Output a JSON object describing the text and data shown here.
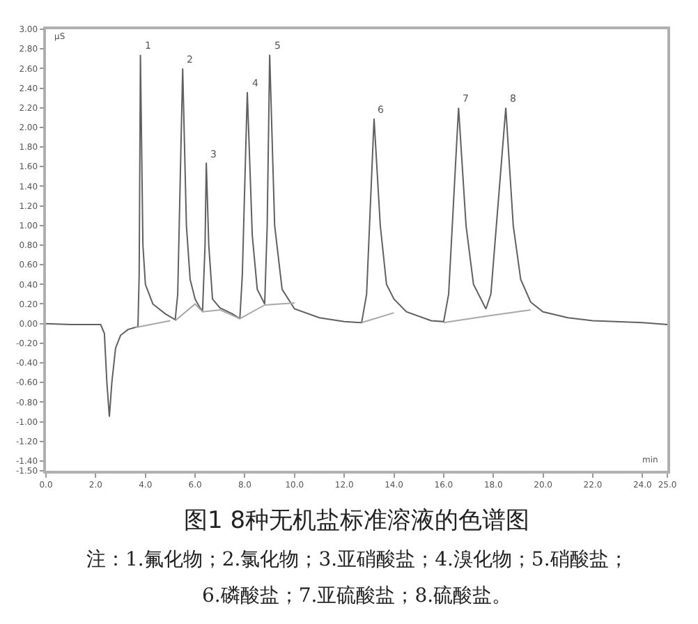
{
  "chart_data": {
    "type": "line",
    "title": "图1 8种无机盐标准溶液的色谱图",
    "xlabel": "min",
    "ylabel": "µS",
    "series": [
      {
        "color": "#606060",
        "x": [
          0.0,
          1.0,
          2.2,
          2.35,
          2.45,
          2.55,
          2.65,
          2.8,
          3.0,
          3.3,
          3.7,
          3.75,
          3.8,
          3.9,
          4.0,
          4.3,
          4.8,
          5.2,
          5.3,
          5.5,
          5.65,
          5.8,
          6.0,
          6.2,
          6.3,
          6.4,
          6.45,
          6.55,
          6.7,
          7.0,
          7.5,
          7.8,
          7.9,
          8.1,
          8.3,
          8.5,
          8.8,
          8.9,
          9.0,
          9.2,
          9.5,
          10.0,
          11.0,
          12.0,
          12.7,
          12.9,
          13.2,
          13.45,
          13.7,
          14.0,
          14.5,
          15.5,
          16.0,
          16.2,
          16.6,
          16.9,
          17.2,
          17.7,
          17.9,
          18.5,
          18.8,
          19.1,
          19.5,
          20.0,
          21.0,
          22.0,
          24.0,
          25.0
        ],
        "values": [
          0.0,
          -0.01,
          -0.01,
          -0.1,
          -0.6,
          -0.95,
          -0.6,
          -0.25,
          -0.12,
          -0.06,
          -0.03,
          0.5,
          2.74,
          0.8,
          0.4,
          0.2,
          0.1,
          0.04,
          0.3,
          2.6,
          1.0,
          0.45,
          0.25,
          0.16,
          0.13,
          0.8,
          1.64,
          0.8,
          0.25,
          0.16,
          0.1,
          0.05,
          0.5,
          2.36,
          0.9,
          0.35,
          0.2,
          1.0,
          2.74,
          1.0,
          0.35,
          0.15,
          0.06,
          0.02,
          0.01,
          0.3,
          2.09,
          1.0,
          0.4,
          0.25,
          0.12,
          0.03,
          0.02,
          0.3,
          2.2,
          1.0,
          0.4,
          0.15,
          0.3,
          2.2,
          1.0,
          0.45,
          0.22,
          0.12,
          0.06,
          0.03,
          0.01,
          -0.01
        ]
      },
      {
        "color": "#a8a8a8",
        "x": [
          3.6,
          5.0,
          null,
          5.2,
          6.0,
          6.3,
          7.0,
          7.8,
          8.8,
          10.0,
          null,
          12.7,
          14.0,
          null,
          16.0,
          17.8,
          19.5
        ],
        "values": [
          -0.04,
          0.03,
          null,
          0.03,
          0.2,
          0.12,
          0.14,
          0.05,
          0.19,
          0.21,
          null,
          0.01,
          0.11,
          null,
          0.01,
          0.08,
          0.14
        ]
      }
    ],
    "xlim": [
      0,
      25
    ],
    "xticks": [
      {
        "value": 0,
        "label": "0.0"
      },
      {
        "value": 2,
        "label": "2.0"
      },
      {
        "value": 4,
        "label": "4.0"
      },
      {
        "value": 6,
        "label": "6.0"
      },
      {
        "value": 8,
        "label": "8.0"
      },
      {
        "value": 10,
        "label": "10.0"
      },
      {
        "value": 12,
        "label": "12.0"
      },
      {
        "value": 14,
        "label": "14.0"
      },
      {
        "value": 16,
        "label": "16.0"
      },
      {
        "value": 18,
        "label": "18.0"
      },
      {
        "value": 20,
        "label": "20.0"
      },
      {
        "value": 22,
        "label": "22.0"
      },
      {
        "value": 24,
        "label": "24.0"
      },
      {
        "value": 25,
        "label": "25.0"
      }
    ],
    "ylim": [
      -1.5,
      3.0
    ],
    "yticks": [
      {
        "value": 3.0,
        "label": "3.00"
      },
      {
        "value": 2.8,
        "label": "2.80"
      },
      {
        "value": 2.6,
        "label": "2.60"
      },
      {
        "value": 2.4,
        "label": "2.40"
      },
      {
        "value": 2.2,
        "label": "2.20"
      },
      {
        "value": 2.0,
        "label": "2.00"
      },
      {
        "value": 1.8,
        "label": "1.80"
      },
      {
        "value": 1.6,
        "label": "1.60"
      },
      {
        "value": 1.4,
        "label": "1.40"
      },
      {
        "value": 1.2,
        "label": "1.20"
      },
      {
        "value": 1.0,
        "label": "1.00"
      },
      {
        "value": 0.8,
        "label": "0.80"
      },
      {
        "value": 0.6,
        "label": "0.60"
      },
      {
        "value": 0.4,
        "label": "0.40"
      },
      {
        "value": 0.2,
        "label": "0.20"
      },
      {
        "value": 0.0,
        "label": "0.00"
      },
      {
        "value": -0.2,
        "label": "-0.20"
      },
      {
        "value": -0.4,
        "label": "-0.40"
      },
      {
        "value": -0.6,
        "label": "-0.60"
      },
      {
        "value": -0.8,
        "label": "-0.80"
      },
      {
        "value": -1.0,
        "label": "-1.00"
      },
      {
        "value": -1.2,
        "label": "-1.20"
      },
      {
        "value": -1.4,
        "label": "-1.40"
      },
      {
        "value": -1.5,
        "label": "-1.50"
      }
    ],
    "annotations": [
      {
        "text": "1",
        "x": 3.8,
        "y": 2.74
      },
      {
        "text": "2",
        "x": 5.5,
        "y": 2.6
      },
      {
        "text": "3",
        "x": 6.45,
        "y": 1.64
      },
      {
        "text": "4",
        "x": 8.1,
        "y": 2.36
      },
      {
        "text": "5",
        "x": 9.0,
        "y": 2.74
      },
      {
        "text": "6",
        "x": 13.2,
        "y": 2.09
      },
      {
        "text": "7",
        "x": 16.6,
        "y": 2.2
      },
      {
        "text": "8",
        "x": 18.5,
        "y": 2.2
      },
      "注：1.氟化物；2.氯化物；3.亚硝酸盐；4.溴化物；5.硝酸盐；",
      "6.磷酸盐；7.亚硫酸盐；8.硫酸盐。"
    ],
    "marker": "none",
    "line_style": "solid"
  }
}
